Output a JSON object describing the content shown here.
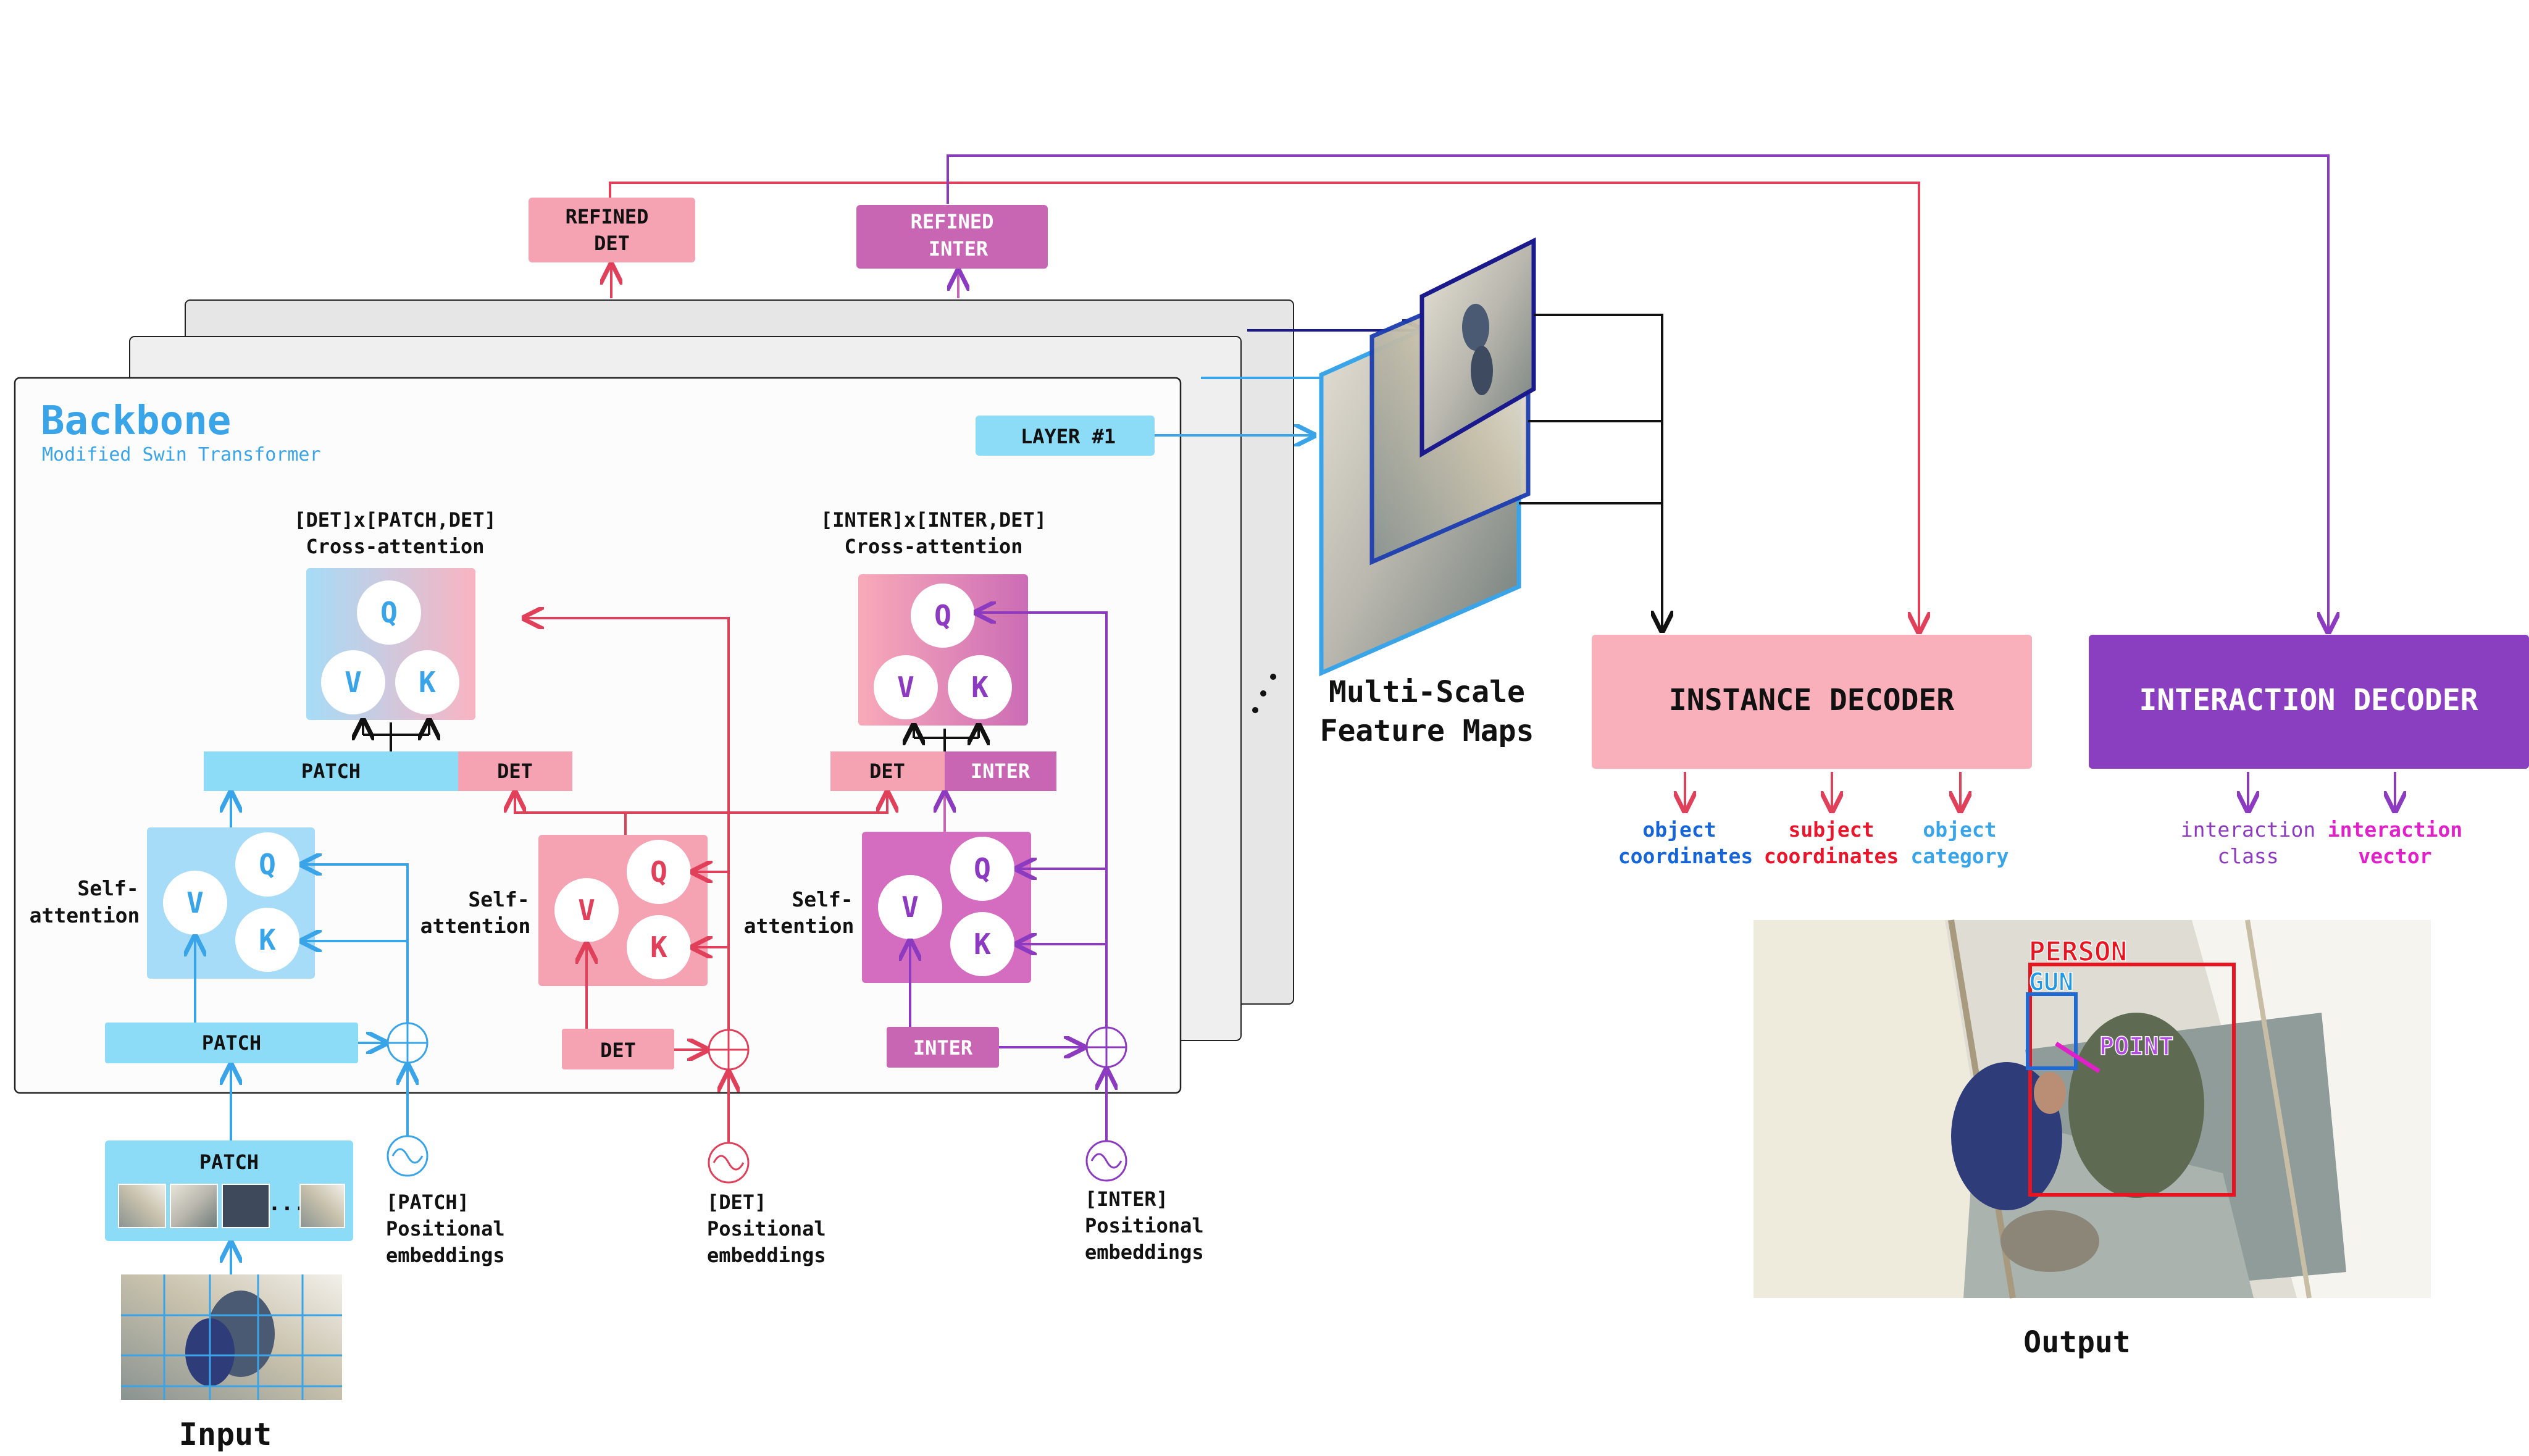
{
  "backbone": {
    "title": "Backbone",
    "subtitle": "Modified Swin Transformer",
    "layer_label": "LAYER #1"
  },
  "refined": {
    "det": [
      "REFINED",
      "DET"
    ],
    "inter": [
      "REFINED",
      "INTER"
    ]
  },
  "cross_attention": {
    "det": [
      "[DET]x[PATCH,DET]",
      "Cross-attention"
    ],
    "inter": [
      "[INTER]x[INTER,DET]",
      "Cross-attention"
    ]
  },
  "qkv": {
    "q": "Q",
    "k": "K",
    "v": "V"
  },
  "tokens": {
    "patch": "PATCH",
    "det": "DET",
    "inter": "INTER"
  },
  "self_attention": [
    "Self-",
    "attention"
  ],
  "positional": {
    "patch": [
      "[PATCH]",
      "Positional",
      "embeddings"
    ],
    "det": [
      "[DET]",
      "Positional",
      "embeddings"
    ],
    "inter": [
      "[INTER]",
      "Positional",
      "embeddings"
    ]
  },
  "input_label": "Input",
  "output_label": "Output",
  "feature_maps": [
    "Multi-Scale",
    "Feature Maps"
  ],
  "ellipsis": "...",
  "decoders": {
    "instance": "INSTANCE DECODER",
    "interaction": "INTERACTION DECODER"
  },
  "instance_outputs": [
    {
      "lines": [
        "object",
        "coordinates"
      ],
      "color": "#1565d8"
    },
    {
      "lines": [
        "subject",
        "coordinates"
      ],
      "color": "#e8152b"
    },
    {
      "lines": [
        "object",
        "category"
      ],
      "color": "#3aa4e8"
    }
  ],
  "interaction_outputs": [
    {
      "lines": [
        "interaction",
        "class"
      ],
      "color": "#8e3ac0"
    },
    {
      "lines": [
        "interaction",
        "vector"
      ],
      "color": "#e020c8"
    }
  ],
  "output_tags": {
    "person": "PERSON",
    "gun": "GUN",
    "point": "POINT"
  },
  "colors": {
    "blue": "#3aa4e8",
    "light_blue": "#8ddcf7",
    "pink": "#f5a3b3",
    "red": "#e0405a",
    "purple": "#8c3bc0",
    "magenta": "#c966b4",
    "dark_navy": "#1a1a8c",
    "decoder_pink": "#fab0bb",
    "decoder_purple": "#8a3ec0"
  }
}
